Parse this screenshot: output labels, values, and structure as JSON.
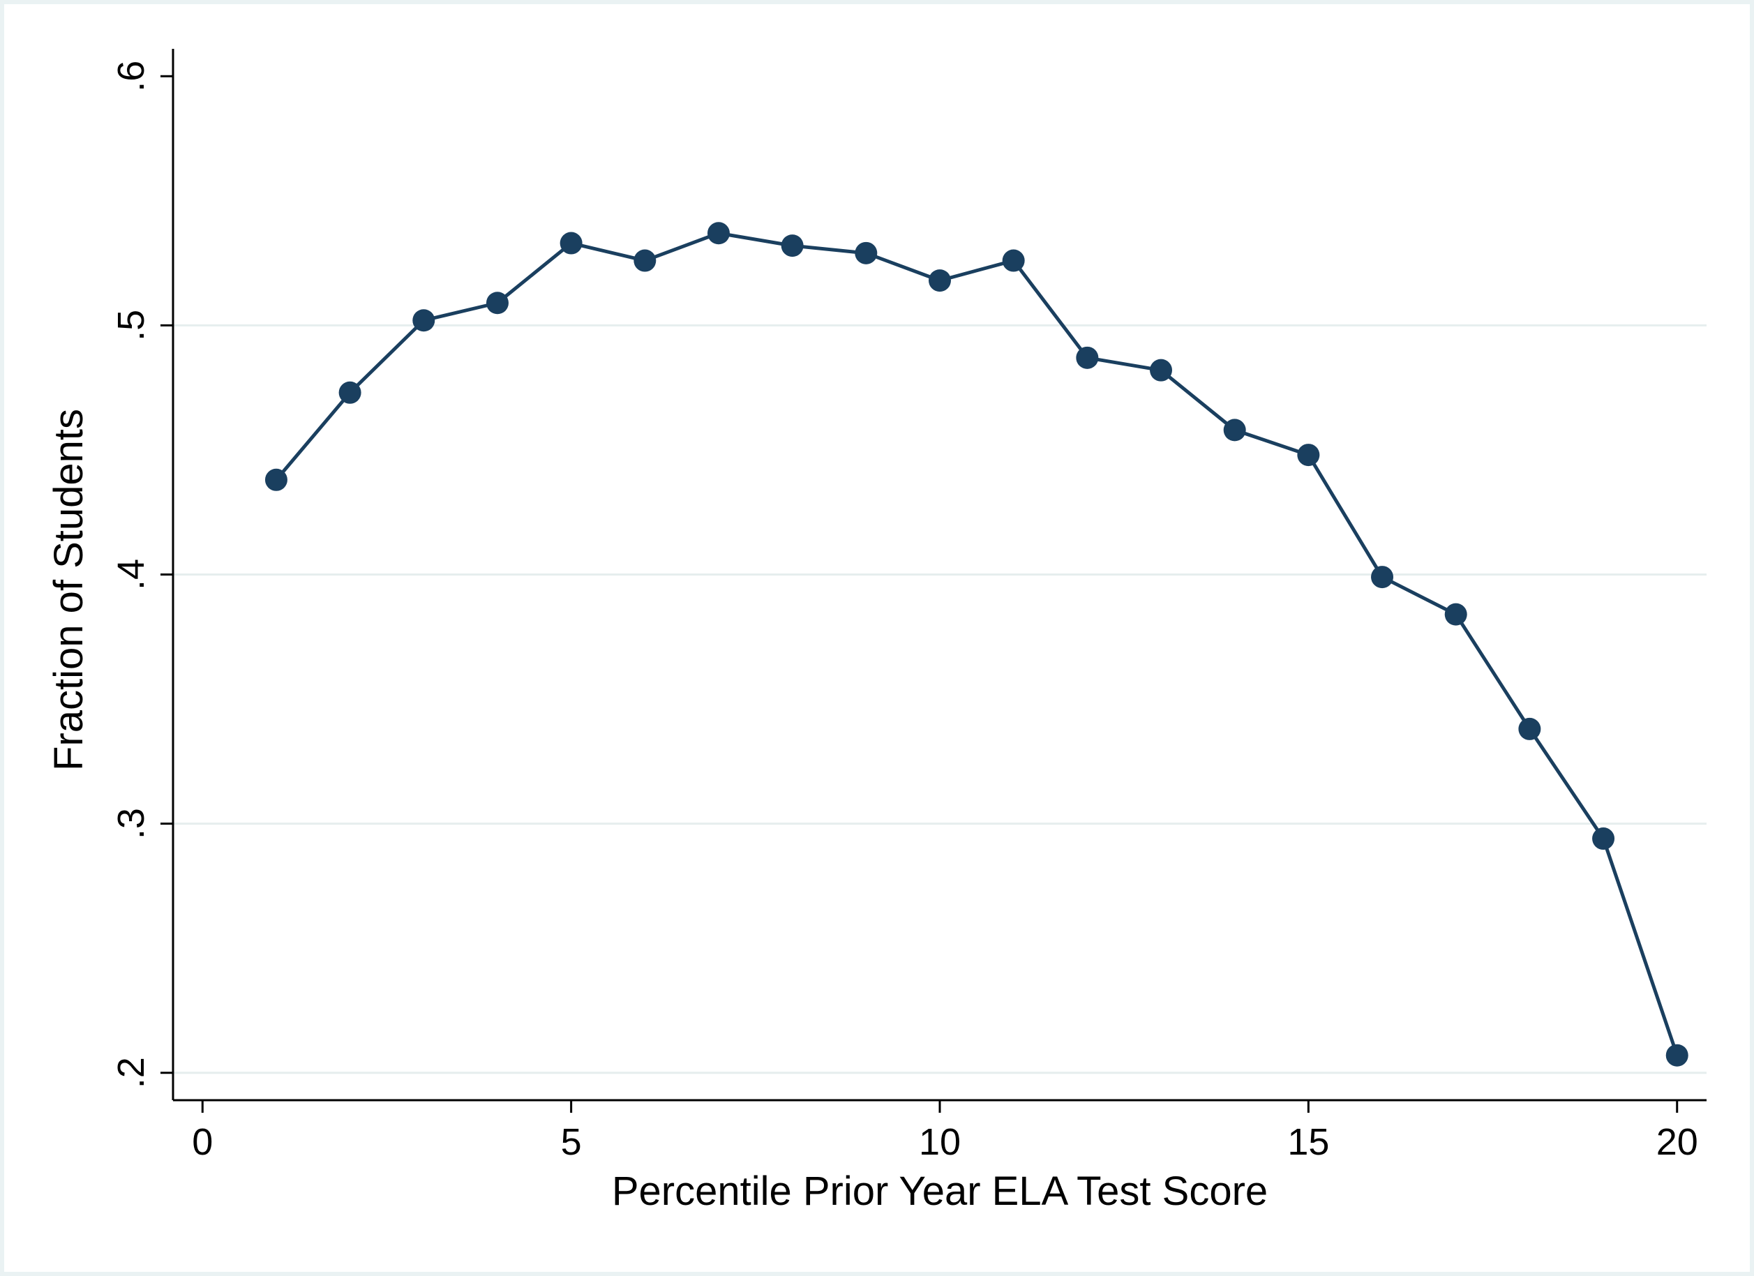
{
  "chart_data": {
    "type": "line",
    "title": "",
    "xlabel": "Percentile Prior Year ELA Test Score",
    "ylabel": "Fraction of Students",
    "xlim": [
      -0.4,
      20.4
    ],
    "ylim": [
      0.189,
      0.611
    ],
    "xticks": [
      0,
      5,
      10,
      15,
      20
    ],
    "xtick_labels": [
      "0",
      "5",
      "10",
      "15",
      "20"
    ],
    "yticks": [
      0.2,
      0.3,
      0.4,
      0.5,
      0.6
    ],
    "ytick_labels": [
      ".2",
      ".3",
      ".4",
      ".5",
      ".6"
    ],
    "grid": "horizontal",
    "legend": "none",
    "series": [
      {
        "x": [
          1,
          2,
          3,
          4,
          5,
          6,
          7,
          8,
          9,
          10,
          11,
          12,
          13,
          14,
          15,
          16,
          17,
          18,
          19,
          20
        ],
        "y": [
          0.438,
          0.473,
          0.502,
          0.509,
          0.533,
          0.526,
          0.537,
          0.532,
          0.529,
          0.518,
          0.526,
          0.487,
          0.482,
          0.458,
          0.448,
          0.399,
          0.384,
          0.338,
          0.294,
          0.207
        ]
      }
    ],
    "colors": {
      "line": "#1a3f5f",
      "marker": "#1a3f5f",
      "grid": "#e6eeee",
      "background": "#ffffff",
      "outer": "#eaf2f3"
    }
  }
}
